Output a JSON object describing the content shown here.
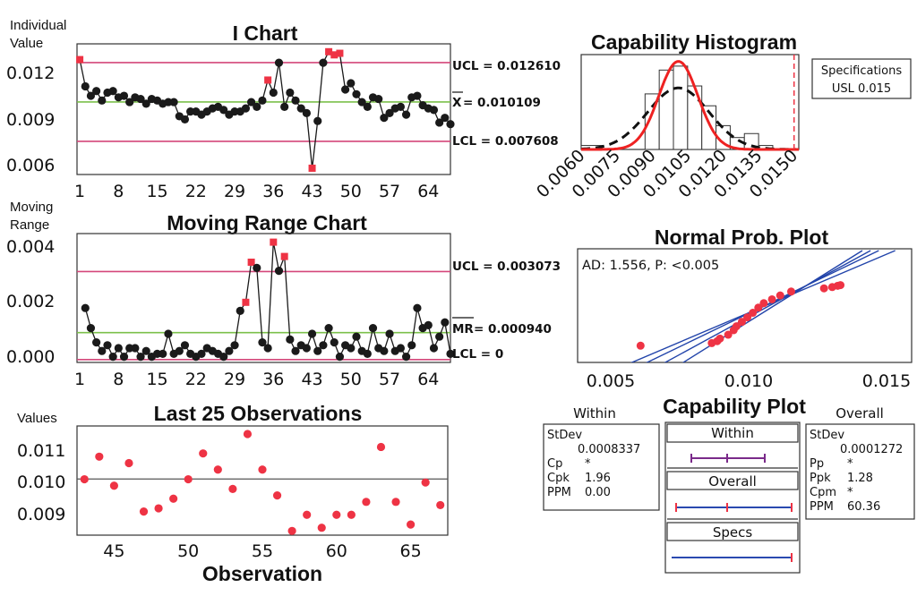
{
  "colors": {
    "ucl": "#d4477a",
    "center": "#7cc04b",
    "point": "#1a1a1a",
    "out": "#ee3344",
    "curve_within": "#ee2222",
    "fit": "#2244aa"
  },
  "ichart": {
    "title": "I Chart",
    "ylabel_1": "Individual",
    "ylabel_2": "Value",
    "yticks": [
      "0.012",
      "0.009",
      "0.006"
    ],
    "xticks": [
      "1",
      "8",
      "15",
      "22",
      "29",
      "36",
      "43",
      "50",
      "57",
      "64"
    ],
    "ucl_label": "UCL = 0.012610",
    "center_symbol": "X",
    "center_value": " = 0.010109",
    "lcl_label": "LCL = 0.007608"
  },
  "mrchart": {
    "title": "Moving Range Chart",
    "ylabel_1": "Moving",
    "ylabel_2": "Range",
    "yticks": [
      "0.004",
      "0.002",
      "0.000"
    ],
    "xticks": [
      "1",
      "8",
      "15",
      "22",
      "29",
      "36",
      "43",
      "50",
      "57",
      "64"
    ],
    "ucl_label": "UCL = 0.003073",
    "center_symbol": "MR",
    "center_value": " = 0.000940",
    "lcl_label": "LCL = 0"
  },
  "last25": {
    "title": "Last 25 Observations",
    "ylabel": "Values",
    "xlabel": "Observation",
    "yticks": [
      "0.011",
      "0.010",
      "0.009"
    ],
    "xticks": [
      "45",
      "50",
      "55",
      "60",
      "65"
    ]
  },
  "histogram": {
    "title": "Capability Histogram",
    "xticks": [
      "0.0060",
      "0.0075",
      "0.0090",
      "0.0105",
      "0.0120",
      "0.0135",
      "0.0150"
    ],
    "spec_title": "Specifications",
    "spec_value": "USL 0.015"
  },
  "normplot": {
    "title": "Normal Prob. Plot",
    "stat": "AD: 1.556, P: <0.005",
    "xticks": [
      "0.005",
      "0.010",
      "0.015"
    ]
  },
  "capplot": {
    "title": "Capability Plot",
    "within_header": "Within",
    "overall_header": "Overall",
    "bar_within": "Within",
    "bar_overall": "Overall",
    "bar_specs": "Specs",
    "within": {
      "stdev_label": "StDev",
      "stdev": "0.0008337",
      "cp_label": "Cp",
      "cp": "*",
      "cpk_label": "Cpk",
      "cpk": "1.96",
      "ppm_label": "PPM",
      "ppm": "0.00"
    },
    "overall": {
      "stdev_label": "StDev",
      "stdev": "0.0001272",
      "pp_label": "Pp",
      "pp": "*",
      "ppk_label": "Ppk",
      "ppk": "1.28",
      "cpm_label": "Cpm",
      "cpm": "*",
      "ppm_label": "PPM",
      "ppm": "60.36"
    }
  },
  "chart_data": [
    {
      "type": "line",
      "name": "I Chart",
      "xlim": [
        0.5,
        68
      ],
      "ylim": [
        0.0055,
        0.0138
      ],
      "ucl": 0.01261,
      "center": 0.010109,
      "lcl": 0.007608,
      "values": [
        0.0128,
        0.0111,
        0.0105,
        0.0108,
        0.0102,
        0.0107,
        0.0108,
        0.0104,
        0.0105,
        0.0101,
        0.0104,
        0.0103,
        0.01,
        0.0103,
        0.0102,
        0.01,
        0.0101,
        0.0101,
        0.0092,
        0.009,
        0.0095,
        0.0095,
        0.0093,
        0.0095,
        0.0097,
        0.0098,
        0.0096,
        0.0093,
        0.0095,
        0.0095,
        0.0097,
        0.0101,
        0.0098,
        0.0102,
        0.0115,
        0.0107,
        0.0126,
        0.0098,
        0.0107,
        0.0102,
        0.0097,
        0.0094,
        0.0059,
        0.0089,
        0.0126,
        0.0133,
        0.0131,
        0.0132,
        0.0109,
        0.0113,
        0.0106,
        0.0101,
        0.0098,
        0.0104,
        0.0103,
        0.0091,
        0.0094,
        0.0097,
        0.0098,
        0.0093,
        0.0104,
        0.0105,
        0.0099,
        0.0097,
        0.0096,
        0.0088,
        0.0091,
        0.0087
      ],
      "out_of_control": [
        1,
        35,
        43,
        46,
        47,
        48
      ]
    },
    {
      "type": "line",
      "name": "Moving Range Chart",
      "xlim": [
        0.5,
        68
      ],
      "ylim": [
        -0.0001,
        0.0044
      ],
      "ucl": 0.003073,
      "center": 0.00094,
      "lcl": 0,
      "values": [
        0.0018,
        0.0011,
        0.0006,
        0.0003,
        0.0005,
        0.0001,
        0.0004,
        0.0001,
        0.0004,
        0.0004,
        0.0001,
        0.0003,
        0.0001,
        0.0002,
        0.0002,
        0.0009,
        0.0002,
        0.0003,
        0.0005,
        0.0002,
        0.0001,
        0.0002,
        0.0004,
        0.0003,
        0.0002,
        0.0001,
        0.0003,
        0.0005,
        0.0017,
        0.002,
        0.0034,
        0.0032,
        0.0006,
        0.0004,
        0.0041,
        0.0031,
        0.0036,
        0.0007,
        0.0003,
        0.0005,
        0.0004,
        0.0009,
        0.0003,
        0.0005,
        0.0011,
        0.0006,
        0.0001,
        0.0005,
        0.0004,
        0.0008,
        0.0003,
        0.0002,
        0.0011,
        0.0004,
        0.0003,
        0.0009,
        0.0003,
        0.0004,
        0.0001,
        0.0005,
        0.0018,
        0.0011,
        0.0012,
        0.0004,
        0.0008,
        0.0013,
        0.0002
      ],
      "out_of_control": [
        30,
        31,
        35,
        37
      ]
    },
    {
      "type": "scatter",
      "name": "Last 25 Observations",
      "xlim": [
        42.5,
        67.5
      ],
      "ylim": [
        0.00837,
        0.01175
      ],
      "center": 0.010109,
      "x": [
        43,
        44,
        45,
        46,
        47,
        48,
        49,
        50,
        51,
        52,
        53,
        54,
        55,
        56,
        57,
        58,
        59,
        60,
        61,
        62,
        63,
        64,
        65,
        66,
        67
      ],
      "values": [
        0.0101,
        0.0108,
        0.0099,
        0.0106,
        0.0091,
        0.0092,
        0.0095,
        0.0101,
        0.0109,
        0.0104,
        0.0098,
        0.0115,
        0.0104,
        0.0096,
        0.0085,
        0.009,
        0.0086,
        0.009,
        0.009,
        0.0094,
        0.0111,
        0.0094,
        0.0087,
        0.01,
        0.0093
      ]
    },
    {
      "type": "bar",
      "name": "Capability Histogram",
      "xlim": [
        0.006,
        0.0152
      ],
      "usl": 0.015,
      "bin_edges": [
        0.006,
        0.0069,
        0.0078,
        0.0087,
        0.0093,
        0.0099,
        0.0105,
        0.0111,
        0.0117,
        0.0123,
        0.0129,
        0.0135,
        0.0141
      ],
      "counts": [
        1,
        0,
        0,
        14,
        20,
        21,
        16,
        11,
        6,
        3,
        4,
        1
      ]
    },
    {
      "type": "scatter",
      "name": "Normal Prob. Plot",
      "xlim": [
        0.0036,
        0.0158
      ],
      "x": [
        0.0059,
        0.0085,
        0.0087,
        0.0088,
        0.0091,
        0.0093,
        0.0094,
        0.0096,
        0.0098,
        0.01,
        0.0102,
        0.0104,
        0.0107,
        0.011,
        0.0114,
        0.0126,
        0.0129,
        0.0131,
        0.0132
      ],
      "percentiles": [
        1,
        5,
        8,
        12,
        18,
        25,
        31,
        38,
        45,
        52,
        60,
        67,
        73,
        79,
        85,
        90,
        92,
        94,
        95
      ]
    }
  ]
}
